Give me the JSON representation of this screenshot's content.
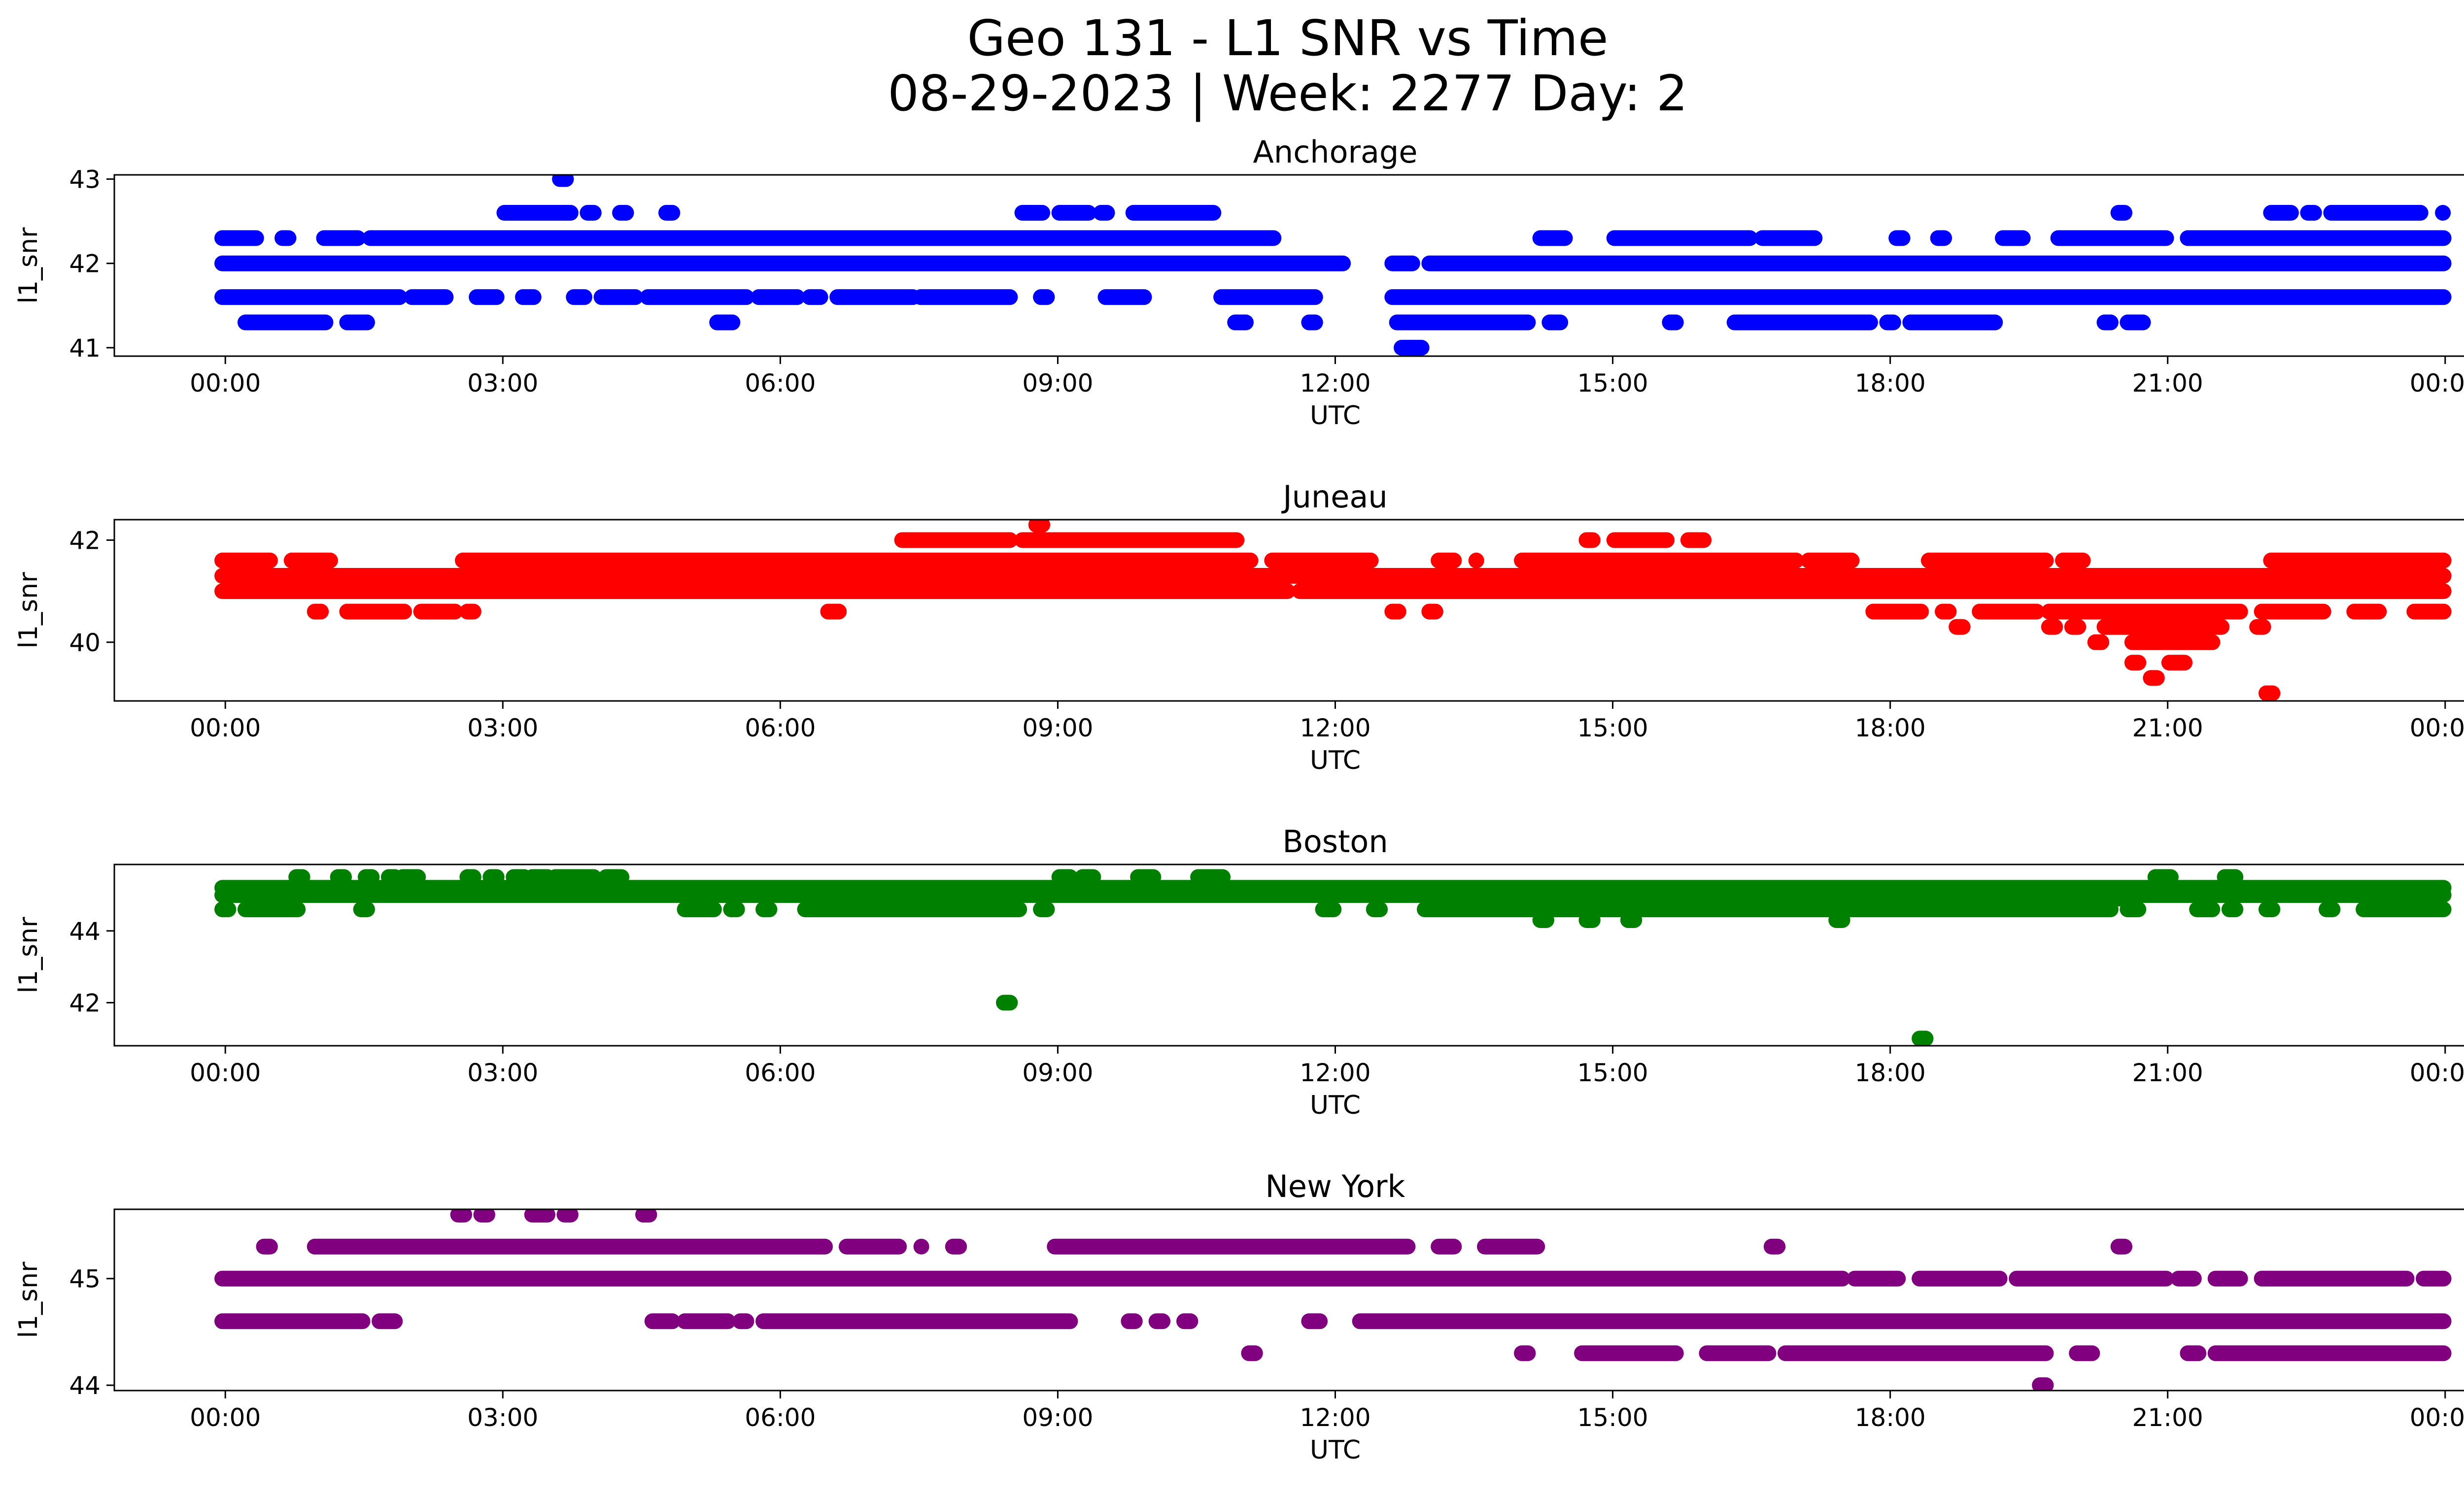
{
  "figure": {
    "title_line_1": "Geo 131 - L1 SNR vs Time",
    "title_line_2": "08-29-2023 | Week: 2277 Day: 2"
  },
  "chart_data": [
    {
      "type": "scatter",
      "title": "Anchorage",
      "xlabel": "UTC",
      "ylabel": "l1_snr",
      "color": "#0000ff",
      "x_ticks": [
        "00:00",
        "03:00",
        "06:00",
        "09:00",
        "12:00",
        "15:00",
        "18:00",
        "21:00",
        "00:00"
      ],
      "xlim_hours": [
        -1.2,
        25.2
      ],
      "ylim": [
        40.9,
        43.05
      ],
      "y_ticks": [
        41,
        42,
        43
      ],
      "bands": [
        {
          "y": 41.0,
          "segments": [
            [
              12.7,
              12.95
            ]
          ]
        },
        {
          "y": 41.3,
          "segments": [
            [
              0.2,
              1.1
            ],
            [
              1.3,
              1.55
            ],
            [
              5.3,
              5.5
            ],
            [
              10.9,
              11.05
            ],
            [
              11.7,
              11.8
            ],
            [
              12.65,
              14.1
            ],
            [
              14.3,
              14.45
            ],
            [
              15.6,
              15.7
            ],
            [
              16.3,
              17.8
            ],
            [
              17.95,
              18.05
            ],
            [
              18.2,
              19.15
            ],
            [
              20.3,
              20.4
            ],
            [
              20.55,
              20.75
            ]
          ]
        },
        {
          "y": 41.6,
          "segments": [
            [
              -0.05,
              1.9
            ],
            [
              2.0,
              2.4
            ],
            [
              2.7,
              2.95
            ],
            [
              3.2,
              3.35
            ],
            [
              3.75,
              3.9
            ],
            [
              4.05,
              4.45
            ],
            [
              4.55,
              5.65
            ],
            [
              5.75,
              6.2
            ],
            [
              6.3,
              6.45
            ],
            [
              6.6,
              7.45
            ],
            [
              7.5,
              8.5
            ],
            [
              8.8,
              8.9
            ],
            [
              9.5,
              9.95
            ],
            [
              10.75,
              11.8
            ],
            [
              12.6,
              24.0
            ]
          ]
        },
        {
          "y": 42.0,
          "segments": [
            [
              -0.05,
              12.1
            ],
            [
              12.6,
              12.85
            ],
            [
              13.0,
              24.0
            ]
          ]
        },
        {
          "y": 42.3,
          "segments": [
            [
              -0.05,
              0.35
            ],
            [
              0.6,
              0.7
            ],
            [
              1.05,
              1.45
            ],
            [
              1.55,
              11.35
            ],
            [
              14.2,
              14.5
            ],
            [
              15.0,
              16.5
            ],
            [
              16.6,
              17.2
            ],
            [
              18.05,
              18.15
            ],
            [
              18.5,
              18.6
            ],
            [
              19.2,
              19.45
            ],
            [
              19.8,
              21.0
            ],
            [
              21.2,
              24.0
            ]
          ]
        },
        {
          "y": 42.6,
          "segments": [
            [
              3.0,
              3.75
            ],
            [
              3.9,
              4.0
            ],
            [
              4.25,
              4.35
            ],
            [
              4.75,
              4.85
            ],
            [
              8.6,
              8.85
            ],
            [
              9.0,
              9.35
            ],
            [
              9.45,
              9.55
            ],
            [
              9.8,
              10.7
            ],
            [
              20.45,
              20.55
            ],
            [
              22.1,
              22.35
            ],
            [
              22.5,
              22.6
            ],
            [
              22.75,
              23.75
            ],
            [
              23.95,
              24.0
            ]
          ]
        },
        {
          "y": 43.0,
          "segments": [
            [
              3.6,
              3.7
            ]
          ]
        }
      ]
    },
    {
      "type": "scatter",
      "title": "Juneau",
      "xlabel": "UTC",
      "ylabel": "l1_snr",
      "color": "#ff0000",
      "x_ticks": [
        "00:00",
        "03:00",
        "06:00",
        "09:00",
        "12:00",
        "15:00",
        "18:00",
        "21:00",
        "00:00"
      ],
      "xlim_hours": [
        -1.2,
        25.2
      ],
      "ylim": [
        38.85,
        42.4
      ],
      "y_ticks": [
        40,
        42
      ],
      "bands": [
        {
          "y": 39.0,
          "segments": [
            [
              22.05,
              22.15
            ]
          ]
        },
        {
          "y": 39.3,
          "segments": [
            [
              20.8,
              20.9
            ]
          ]
        },
        {
          "y": 39.6,
          "segments": [
            [
              20.6,
              20.7
            ],
            [
              21.0,
              21.2
            ]
          ]
        },
        {
          "y": 40.0,
          "segments": [
            [
              20.2,
              20.3
            ],
            [
              20.6,
              21.5
            ]
          ]
        },
        {
          "y": 40.3,
          "segments": [
            [
              18.7,
              18.8
            ],
            [
              19.7,
              19.8
            ],
            [
              19.95,
              20.05
            ],
            [
              20.3,
              21.6
            ],
            [
              21.95,
              22.05
            ]
          ]
        },
        {
          "y": 40.6,
          "segments": [
            [
              0.95,
              1.05
            ],
            [
              1.3,
              1.95
            ],
            [
              2.1,
              2.5
            ],
            [
              2.6,
              2.7
            ],
            [
              6.5,
              6.65
            ],
            [
              12.6,
              12.7
            ],
            [
              13.0,
              13.1
            ],
            [
              17.8,
              18.35
            ],
            [
              18.55,
              18.65
            ],
            [
              18.95,
              19.6
            ],
            [
              19.7,
              21.8
            ],
            [
              22.0,
              22.7
            ],
            [
              23.0,
              23.3
            ],
            [
              23.65,
              24.0
            ]
          ]
        },
        {
          "y": 41.0,
          "segments": [
            [
              -0.05,
              11.5
            ],
            [
              11.6,
              24.0
            ]
          ]
        },
        {
          "y": 41.3,
          "segments": [
            [
              -0.05,
              24.0
            ]
          ]
        },
        {
          "y": 41.6,
          "segments": [
            [
              -0.05,
              0.5
            ],
            [
              0.7,
              1.15
            ],
            [
              2.55,
              11.1
            ],
            [
              11.3,
              12.4
            ],
            [
              13.1,
              13.3
            ],
            [
              13.5,
              13.55
            ],
            [
              14.0,
              17.0
            ],
            [
              17.1,
              17.6
            ],
            [
              18.4,
              19.7
            ],
            [
              19.85,
              20.1
            ],
            [
              22.1,
              24.0
            ]
          ]
        },
        {
          "y": 42.0,
          "segments": [
            [
              7.3,
              8.5
            ],
            [
              8.6,
              10.95
            ],
            [
              14.7,
              14.8
            ],
            [
              15.0,
              15.6
            ],
            [
              15.8,
              16.0
            ]
          ]
        },
        {
          "y": 42.3,
          "segments": [
            [
              8.75,
              8.85
            ]
          ]
        }
      ]
    },
    {
      "type": "scatter",
      "title": "Boston",
      "xlabel": "UTC",
      "ylabel": "l1_snr",
      "color": "#008000",
      "x_ticks": [
        "00:00",
        "03:00",
        "06:00",
        "09:00",
        "12:00",
        "15:00",
        "18:00",
        "21:00",
        "00:00"
      ],
      "xlim_hours": [
        -1.2,
        25.2
      ],
      "ylim": [
        40.8,
        45.85
      ],
      "y_ticks": [
        42,
        44
      ],
      "bands": [
        {
          "y": 41.0,
          "segments": [
            [
              18.3,
              18.4
            ]
          ]
        },
        {
          "y": 42.0,
          "segments": [
            [
              8.4,
              8.5
            ]
          ]
        },
        {
          "y": 44.3,
          "segments": [
            [
              14.2,
              14.3
            ],
            [
              14.7,
              14.8
            ],
            [
              15.15,
              15.25
            ],
            [
              17.4,
              17.5
            ]
          ]
        },
        {
          "y": 44.6,
          "segments": [
            [
              -0.05,
              0.05
            ],
            [
              0.2,
              0.8
            ],
            [
              1.45,
              1.55
            ],
            [
              4.95,
              5.3
            ],
            [
              5.45,
              5.55
            ],
            [
              5.8,
              5.9
            ],
            [
              6.25,
              8.6
            ],
            [
              8.8,
              8.9
            ],
            [
              11.85,
              12.0
            ],
            [
              12.4,
              12.5
            ],
            [
              12.95,
              20.4
            ],
            [
              20.55,
              20.7
            ],
            [
              21.3,
              21.5
            ],
            [
              21.65,
              21.75
            ],
            [
              22.05,
              22.15
            ],
            [
              22.7,
              22.8
            ],
            [
              23.1,
              24.0
            ]
          ]
        },
        {
          "y": 44.9,
          "segments": [
            [
              13.0,
              20.5
            ]
          ]
        },
        {
          "y": 45.0,
          "segments": [
            [
              -0.05,
              24.0
            ]
          ]
        },
        {
          "y": 45.2,
          "segments": [
            [
              -0.05,
              24.0
            ]
          ]
        },
        {
          "y": 45.5,
          "segments": [
            [
              0.75,
              0.85
            ],
            [
              1.2,
              1.3
            ],
            [
              1.5,
              1.6
            ],
            [
              1.75,
              1.85
            ],
            [
              1.9,
              2.1
            ],
            [
              2.6,
              2.7
            ],
            [
              2.85,
              2.95
            ],
            [
              3.1,
              3.25
            ],
            [
              3.3,
              3.5
            ],
            [
              3.55,
              4.0
            ],
            [
              4.1,
              4.3
            ],
            [
              9.0,
              9.15
            ],
            [
              9.25,
              9.4
            ],
            [
              9.85,
              10.05
            ],
            [
              10.5,
              10.8
            ],
            [
              20.85,
              21.05
            ],
            [
              21.6,
              21.75
            ]
          ]
        }
      ]
    },
    {
      "type": "scatter",
      "title": "New York",
      "xlabel": "UTC",
      "ylabel": "l1_snr",
      "color": "#800080",
      "x_ticks": [
        "00:00",
        "03:00",
        "06:00",
        "09:00",
        "12:00",
        "15:00",
        "18:00",
        "21:00",
        "00:00"
      ],
      "xlim_hours": [
        -1.2,
        25.2
      ],
      "ylim": [
        43.95,
        45.65
      ],
      "y_ticks": [
        44,
        45
      ],
      "bands": [
        {
          "y": 44.0,
          "segments": [
            [
              19.6,
              19.7
            ]
          ]
        },
        {
          "y": 44.3,
          "segments": [
            [
              11.05,
              11.15
            ],
            [
              14.0,
              14.1
            ],
            [
              14.65,
              15.7
            ],
            [
              16.0,
              16.7
            ],
            [
              16.85,
              19.7
            ],
            [
              20.0,
              20.2
            ],
            [
              21.2,
              21.35
            ],
            [
              21.5,
              24.0
            ]
          ]
        },
        {
          "y": 44.6,
          "segments": [
            [
              -0.05,
              1.5
            ],
            [
              1.65,
              1.85
            ],
            [
              4.6,
              4.85
            ],
            [
              4.95,
              5.45
            ],
            [
              5.55,
              5.65
            ],
            [
              5.8,
              9.15
            ],
            [
              9.75,
              9.85
            ],
            [
              10.05,
              10.15
            ],
            [
              10.35,
              10.45
            ],
            [
              11.7,
              11.85
            ],
            [
              12.25,
              24.0
            ]
          ]
        },
        {
          "y": 45.0,
          "segments": [
            [
              -0.05,
              17.5
            ],
            [
              17.6,
              18.1
            ],
            [
              18.3,
              19.2
            ],
            [
              19.35,
              21.0
            ],
            [
              21.1,
              21.3
            ],
            [
              21.5,
              21.8
            ],
            [
              22.0,
              23.6
            ],
            [
              23.75,
              24.0
            ]
          ]
        },
        {
          "y": 45.3,
          "segments": [
            [
              0.4,
              0.5
            ],
            [
              0.95,
              6.5
            ],
            [
              6.7,
              7.3
            ],
            [
              7.5,
              7.55
            ],
            [
              7.85,
              7.95
            ],
            [
              8.95,
              12.8
            ],
            [
              13.1,
              13.3
            ],
            [
              13.6,
              14.2
            ],
            [
              16.7,
              16.8
            ],
            [
              20.45,
              20.55
            ]
          ]
        },
        {
          "y": 45.6,
          "segments": [
            [
              2.5,
              2.6
            ],
            [
              2.75,
              2.85
            ],
            [
              3.3,
              3.5
            ],
            [
              3.65,
              3.75
            ],
            [
              4.5,
              4.6
            ]
          ]
        }
      ]
    }
  ]
}
